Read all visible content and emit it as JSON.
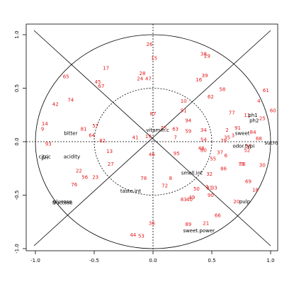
{
  "chart_data": {
    "type": "scatter",
    "title": "",
    "xlabel": "",
    "ylabel": "",
    "xlim": [
      -1.05,
      1.05
    ],
    "ylim": [
      -1.08,
      1.08
    ],
    "xticks": [
      -1.0,
      -0.5,
      0.0,
      0.5,
      1.0
    ],
    "yticks": [
      -1.0,
      -0.5,
      0.0,
      0.5,
      1.0
    ],
    "x_tick_labels": [
      "-1.0",
      "-0.5",
      "0.0",
      "0.5",
      "1.0"
    ],
    "y_tick_labels": [
      "-1.0",
      "-0.5",
      "0.0",
      "0.5",
      "1.0"
    ],
    "grid": false,
    "outer_circle_radius": 1.0,
    "inner_circle_radius": 0.5,
    "colors": {
      "observations": "#e31a1c",
      "variables": "#000000",
      "frame": "#000000"
    },
    "observations": [
      {
        "label": "26",
        "x": -0.03,
        "y": 0.91
      },
      {
        "label": "38",
        "x": 0.43,
        "y": 0.82
      },
      {
        "label": "29",
        "x": 0.46,
        "y": 0.8
      },
      {
        "label": "15",
        "x": 0.01,
        "y": 0.78
      },
      {
        "label": "17",
        "x": -0.4,
        "y": 0.69
      },
      {
        "label": "28",
        "x": -0.09,
        "y": 0.64
      },
      {
        "label": "39",
        "x": 0.44,
        "y": 0.62
      },
      {
        "label": "24",
        "x": -0.11,
        "y": 0.59
      },
      {
        "label": "47",
        "x": -0.04,
        "y": 0.59
      },
      {
        "label": "16",
        "x": 0.39,
        "y": 0.58
      },
      {
        "label": "65",
        "x": -0.74,
        "y": 0.61
      },
      {
        "label": "45",
        "x": -0.47,
        "y": 0.56
      },
      {
        "label": "67",
        "x": -0.44,
        "y": 0.52
      },
      {
        "label": "58",
        "x": 0.59,
        "y": 0.49
      },
      {
        "label": "61",
        "x": 0.96,
        "y": 0.48
      },
      {
        "label": "62",
        "x": 0.49,
        "y": 0.42
      },
      {
        "label": "10",
        "x": 0.26,
        "y": 0.38
      },
      {
        "label": "74",
        "x": -0.7,
        "y": 0.39
      },
      {
        "label": "42",
        "x": -0.83,
        "y": 0.35
      },
      {
        "label": "4",
        "x": 0.9,
        "y": 0.38
      },
      {
        "label": "51",
        "x": 0.26,
        "y": 0.29
      },
      {
        "label": "60",
        "x": 1.02,
        "y": 0.29
      },
      {
        "label": "87",
        "x": 0.0,
        "y": 0.26
      },
      {
        "label": "77",
        "x": 0.67,
        "y": 0.27
      },
      {
        "label": "11",
        "x": 0.8,
        "y": 0.25
      },
      {
        "label": "25",
        "x": 0.93,
        "y": 0.22
      },
      {
        "label": "94",
        "x": 0.3,
        "y": 0.2
      },
      {
        "label": "14",
        "x": -0.92,
        "y": 0.17
      },
      {
        "label": "57",
        "x": -0.49,
        "y": 0.15
      },
      {
        "label": "9",
        "x": -0.94,
        "y": 0.12
      },
      {
        "label": "81",
        "x": -0.59,
        "y": 0.12
      },
      {
        "label": "75",
        "x": 0.09,
        "y": 0.13
      },
      {
        "label": "63",
        "x": 0.19,
        "y": 0.12
      },
      {
        "label": "59",
        "x": 0.3,
        "y": 0.1
      },
      {
        "label": "34",
        "x": 0.43,
        "y": 0.11
      },
      {
        "label": "91",
        "x": 0.72,
        "y": 0.13
      },
      {
        "label": "2",
        "x": 0.63,
        "y": 0.11
      },
      {
        "label": "84",
        "x": 0.85,
        "y": 0.09
      },
      {
        "label": "64",
        "x": -0.52,
        "y": 0.06
      },
      {
        "label": "19",
        "x": -0.04,
        "y": 0.05
      },
      {
        "label": "41",
        "y": 0.04,
        "x": -0.15
      },
      {
        "label": "7",
        "x": 0.19,
        "y": 0.04
      },
      {
        "label": "3",
        "x": 0.68,
        "y": 0.06
      },
      {
        "label": "35",
        "x": 0.63,
        "y": 0.04
      },
      {
        "label": "68",
        "x": 0.9,
        "y": 0.03
      },
      {
        "label": "82",
        "x": -0.43,
        "y": 0.01
      },
      {
        "label": "54",
        "x": 0.43,
        "y": 0.02
      },
      {
        "label": "79",
        "x": 0.6,
        "y": 0.01
      },
      {
        "label": "93",
        "x": -0.89,
        "y": -0.02
      },
      {
        "label": "56",
        "x": 0.81,
        "y": -0.04
      },
      {
        "label": "48",
        "x": 0.41,
        "y": -0.06
      },
      {
        "label": "80",
        "x": 0.43,
        "y": -0.08
      },
      {
        "label": "13",
        "x": -0.37,
        "y": -0.09
      },
      {
        "label": "46",
        "x": -0.01,
        "y": -0.12
      },
      {
        "label": "95",
        "x": 0.2,
        "y": -0.11
      },
      {
        "label": "37",
        "x": 0.57,
        "y": -0.1
      },
      {
        "label": "52",
        "x": 0.8,
        "y": -0.08
      },
      {
        "label": "55",
        "x": 0.51,
        "y": -0.16
      },
      {
        "label": "6",
        "x": 0.62,
        "y": -0.13
      },
      {
        "label": "27",
        "x": -0.36,
        "y": -0.21
      },
      {
        "label": "73",
        "x": 0.75,
        "y": -0.21
      },
      {
        "label": "70",
        "x": 0.76,
        "y": -0.21
      },
      {
        "label": "30",
        "x": 0.93,
        "y": -0.22
      },
      {
        "label": "86",
        "x": 0.6,
        "y": -0.25
      },
      {
        "label": "22",
        "x": -0.63,
        "y": -0.27
      },
      {
        "label": "32",
        "x": 0.48,
        "y": -0.3
      },
      {
        "label": "56",
        "x": -0.58,
        "y": -0.33
      },
      {
        "label": "23",
        "x": -0.49,
        "y": -0.33
      },
      {
        "label": "78",
        "x": -0.08,
        "y": -0.34
      },
      {
        "label": "8",
        "x": 0.15,
        "y": -0.34
      },
      {
        "label": "69",
        "x": 0.81,
        "y": -0.37
      },
      {
        "label": "76",
        "x": -0.67,
        "y": -0.4
      },
      {
        "label": "72",
        "x": 0.1,
        "y": -0.41
      },
      {
        "label": "50",
        "x": 0.37,
        "y": -0.44
      },
      {
        "label": "1",
        "x": 0.46,
        "y": -0.42
      },
      {
        "label": "31",
        "x": 0.48,
        "y": -0.43
      },
      {
        "label": "33",
        "x": 0.52,
        "y": -0.43
      },
      {
        "label": "18",
        "x": 0.87,
        "y": -0.45
      },
      {
        "label": "90",
        "x": 0.49,
        "y": -0.5
      },
      {
        "label": "83",
        "x": 0.26,
        "y": -0.54
      },
      {
        "label": "40",
        "x": 0.31,
        "y": -0.54
      },
      {
        "label": "49",
        "x": 0.33,
        "y": -0.52
      },
      {
        "label": "20",
        "x": 0.71,
        "y": -0.56
      },
      {
        "label": "66",
        "x": 0.55,
        "y": -0.69
      },
      {
        "label": "36",
        "x": -0.01,
        "y": -0.76
      },
      {
        "label": "89",
        "x": 0.3,
        "y": -0.77
      },
      {
        "label": "21",
        "x": 0.45,
        "y": -0.76
      },
      {
        "label": "44",
        "x": -0.17,
        "y": -0.87
      },
      {
        "label": "53",
        "x": -0.1,
        "y": -0.88
      }
    ],
    "variables": [
      {
        "label": "vitamin.c",
        "x": 0.04,
        "y": 0.11
      },
      {
        "label": "bitter",
        "x": -0.7,
        "y": 0.08
      },
      {
        "label": "ph1",
        "x": 0.85,
        "y": 0.25
      },
      {
        "label": "ph2",
        "x": 0.86,
        "y": 0.2
      },
      {
        "label": "sweet",
        "x": 0.76,
        "y": 0.08
      },
      {
        "label": "sucrose",
        "x": 1.03,
        "y": -0.01
      },
      {
        "label": "odor.typi",
        "x": 0.77,
        "y": -0.04
      },
      {
        "label": "citric",
        "x": -0.92,
        "y": -0.14
      },
      {
        "label": "pH",
        "x": -0.92,
        "y": -0.15
      },
      {
        "label": "acidity",
        "x": -0.69,
        "y": -0.14
      },
      {
        "label": "smell.int",
        "x": 0.33,
        "y": -0.29
      },
      {
        "label": "taste.int",
        "x": -0.19,
        "y": -0.46
      },
      {
        "label": "glucose",
        "x": -0.77,
        "y": -0.56
      },
      {
        "label": "fructose",
        "x": -0.77,
        "y": -0.57
      },
      {
        "label": "pulp",
        "x": 0.78,
        "y": -0.56
      },
      {
        "label": "sweet.power",
        "x": 0.39,
        "y": -0.83
      }
    ]
  }
}
